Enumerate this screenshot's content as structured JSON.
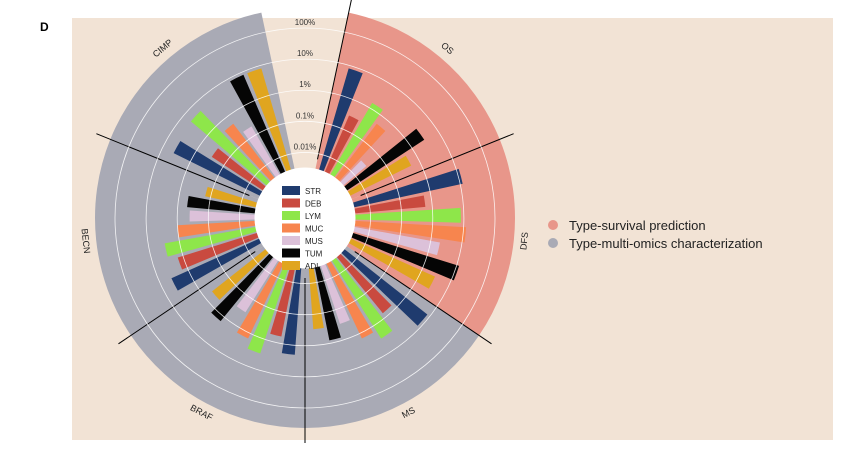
{
  "panel_label": "D",
  "chart_data": {
    "type": "circular-bar",
    "scale": "log",
    "ring_ticks": [
      "0.01%",
      "0.1%",
      "1%",
      "10%",
      "100%"
    ],
    "tissue_types": [
      {
        "label": "STR",
        "color": "#1f3b6e"
      },
      {
        "label": "DEB",
        "color": "#c94a3f"
      },
      {
        "label": "LYM",
        "color": "#8ee64a"
      },
      {
        "label": "MUC",
        "color": "#f7854e"
      },
      {
        "label": "MUS",
        "color": "#dcc1d9"
      },
      {
        "label": "TUM",
        "color": "#050505"
      },
      {
        "label": "ADI",
        "color": "#e0a51f"
      }
    ],
    "groups": [
      {
        "label": "OS",
        "kind": "survival",
        "values": [
          8,
          0.3,
          1.5,
          0.5,
          0.03,
          3,
          0.5
        ]
      },
      {
        "label": "DFS",
        "kind": "survival",
        "values": [
          12,
          0.6,
          8,
          12,
          2,
          12,
          3
        ]
      },
      {
        "label": "MS",
        "kind": "multiomics",
        "values": [
          8,
          0.7,
          3,
          1.5,
          0.3,
          0.8,
          0.3
        ]
      },
      {
        "label": "BRAF",
        "kind": "multiomics",
        "values": [
          2,
          0.6,
          3,
          1.5,
          0.3,
          1.5,
          0.5
        ]
      },
      {
        "label": "BECN",
        "kind": "multiomics",
        "values": [
          4,
          1.5,
          3,
          1,
          0.4,
          0.5,
          0.15
        ]
      },
      {
        "label": "CIMP",
        "kind": "multiomics",
        "values": [
          4,
          0.3,
          5,
          0.5,
          0.2,
          8,
          8
        ]
      }
    ],
    "legend": [
      {
        "label": "Type-survival prediction",
        "color": "#e8968a"
      },
      {
        "label": "Type-multi-omics characterization",
        "color": "#a9aab5"
      }
    ]
  }
}
